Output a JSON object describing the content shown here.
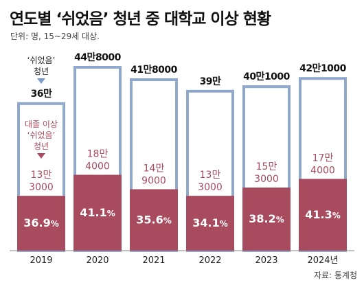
{
  "title": "연도별 ‘쉬었음’ 청년 중 대학교 이상 현황",
  "subtitle": "단위: 명, 15~29세 대상.",
  "source": "자료: 통계청",
  "colors": {
    "outline": "#8FA9CC",
    "fill": "#A84B5E",
    "fill_text": "#A84B5E",
    "share_text": "#FFFFFF",
    "total_text": "#111111",
    "axis": "#888888"
  },
  "annotations": {
    "total_label": [
      "‘쉬었음’",
      "청년"
    ],
    "total_marker_color": "#7B9BC6",
    "grad_label": [
      "대졸 이상",
      "‘쉬었음’",
      "청년"
    ],
    "grad_marker_color": "#A84B5E"
  },
  "chart_data": {
    "type": "bar",
    "categories": [
      "2019",
      "2020",
      "2021",
      "2022",
      "2023",
      "2024년"
    ],
    "series": [
      {
        "values": [
          360000,
          448000,
          418000,
          390000,
          401000,
          421000
        ],
        "labels": [
          "36만",
          "44만8000",
          "41만8000",
          "39만",
          "40만1000",
          "42만1000"
        ]
      },
      {
        "values": [
          133000,
          184000,
          149000,
          133000,
          153000,
          174000
        ],
        "labels": [
          [
            "13만",
            "3000"
          ],
          [
            "18만",
            "4000"
          ],
          [
            "14만",
            "9000"
          ],
          [
            "13만",
            "3000"
          ],
          [
            "15만",
            "3000"
          ],
          [
            "17만",
            "4000"
          ]
        ]
      }
    ],
    "shares": [
      "36.9",
      "41.1",
      "35.6",
      "34.1",
      "38.2",
      "41.3"
    ],
    "share_unit": "%",
    "ylim": [
      0,
      448000
    ],
    "legend": "none",
    "grid": false
  }
}
